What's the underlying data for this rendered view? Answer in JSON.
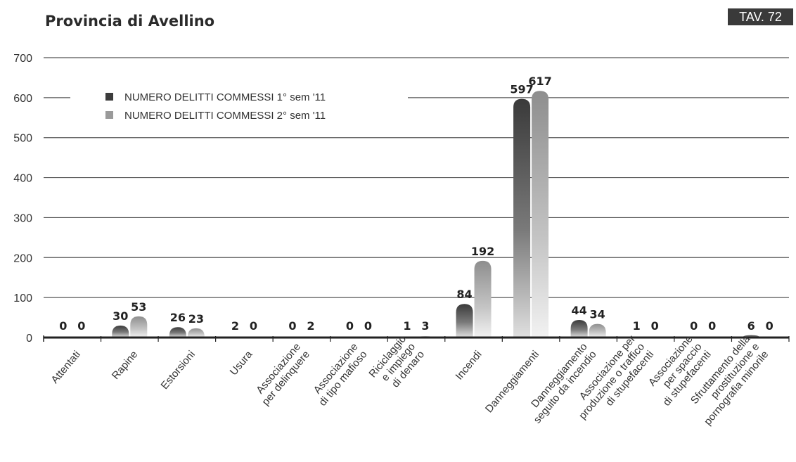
{
  "title": "Provincia di Avellino",
  "table_ref": "TAV. 72",
  "colors": {
    "series1": "#3c3c3c",
    "series2": "#9a9a9a",
    "grid": "#555555"
  },
  "chart_data": {
    "type": "bar",
    "ylim": [
      0,
      700
    ],
    "yticks": [
      0,
      100,
      200,
      300,
      400,
      500,
      600,
      700
    ],
    "grid": true,
    "legend_position": "top-left",
    "categories": [
      [
        "Attentati"
      ],
      [
        "Rapine"
      ],
      [
        "Estorsioni"
      ],
      [
        "Usura"
      ],
      [
        "Associazione",
        "per delinquere"
      ],
      [
        "Associazione",
        "di tipo mafioso"
      ],
      [
        "Riciclaggio",
        "e impiego",
        "di denaro"
      ],
      [
        "Incendi"
      ],
      [
        "Danneggiamenti"
      ],
      [
        "Danneggiamento",
        "seguito da incendio"
      ],
      [
        "Associazione per",
        "produzione o traffico",
        "di stupefacenti"
      ],
      [
        "Associazione",
        "per spaccio",
        "di stupefacenti"
      ],
      [
        "Sfruttamento della",
        "prostituzione e",
        "pornografia minorile"
      ]
    ],
    "series": [
      {
        "name": "NUMERO DELITTI COMMESSI 1° sem '11",
        "values": [
          0,
          30,
          26,
          2,
          0,
          0,
          1,
          84,
          597,
          44,
          1,
          0,
          6
        ]
      },
      {
        "name": "NUMERO DELITTI COMMESSI 2° sem '11",
        "values": [
          0,
          53,
          23,
          0,
          2,
          0,
          3,
          192,
          617,
          34,
          0,
          0,
          0
        ]
      }
    ]
  }
}
